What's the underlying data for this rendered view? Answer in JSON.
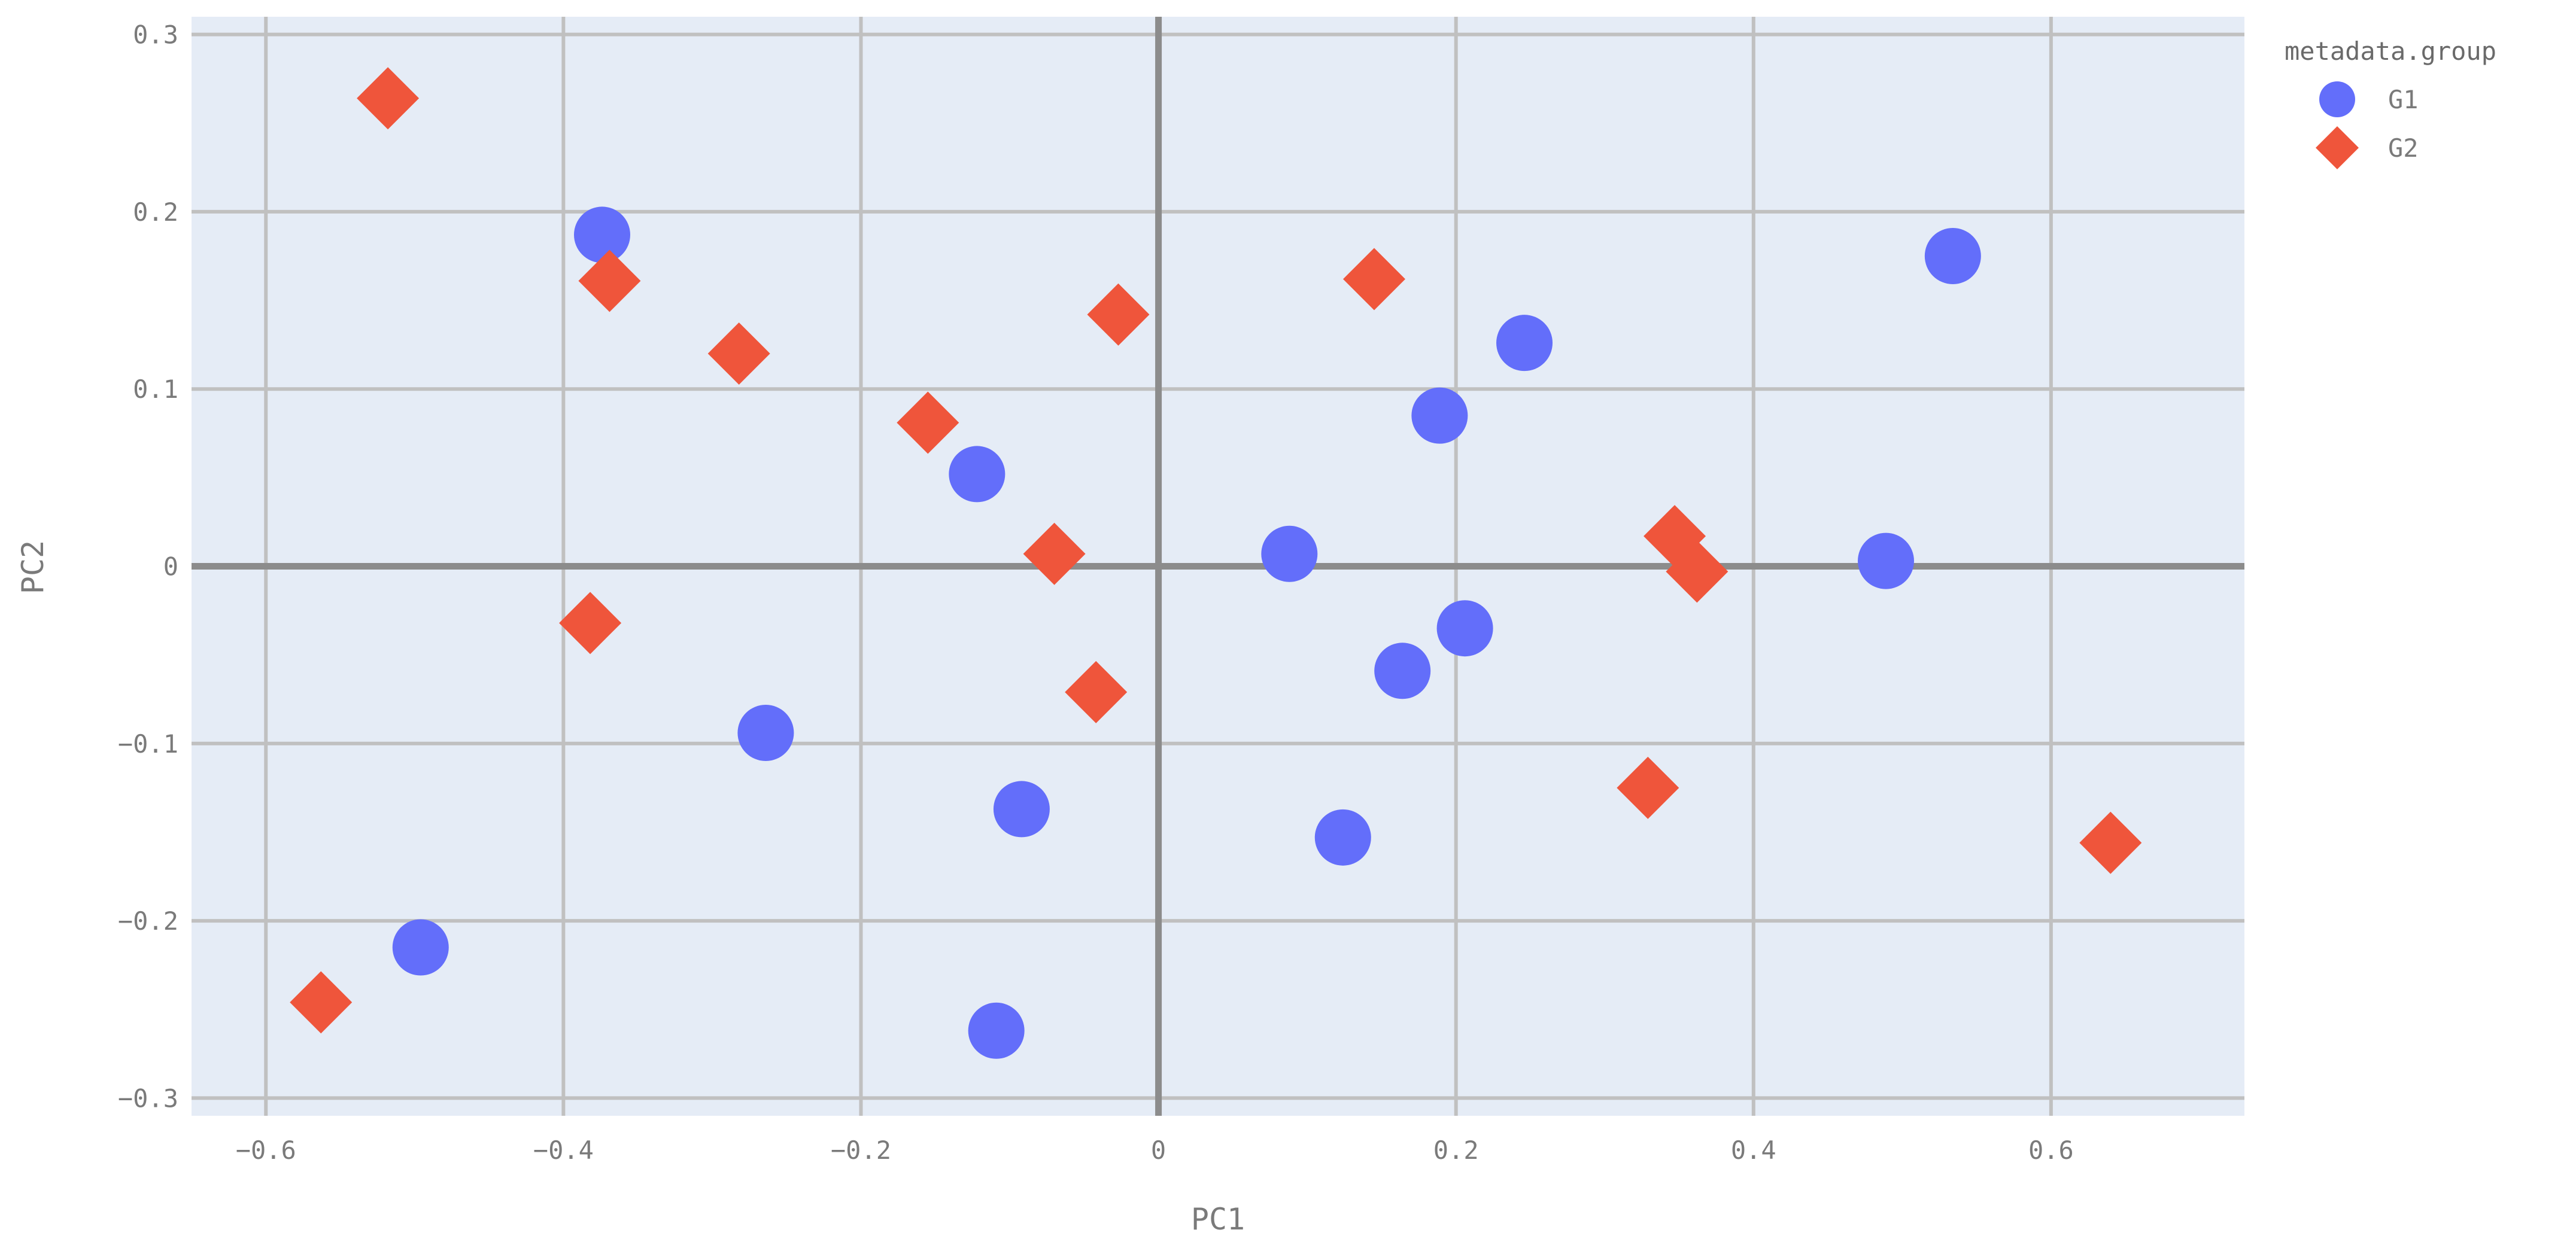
{
  "chart_data": {
    "type": "scatter",
    "xlabel": "PC1",
    "ylabel": "PC2",
    "xlim": [
      -0.65,
      0.73
    ],
    "ylim": [
      -0.31,
      0.31
    ],
    "x_ticks": [
      -0.6,
      -0.4,
      -0.2,
      0,
      0.2,
      0.4,
      0.6
    ],
    "x_tick_labels": [
      "−0.6",
      "−0.4",
      "−0.2",
      "0",
      "0.2",
      "0.4",
      "0.6"
    ],
    "y_ticks": [
      -0.3,
      -0.2,
      -0.1,
      0,
      0.1,
      0.2,
      0.3
    ],
    "y_tick_labels": [
      "−0.3",
      "−0.2",
      "−0.1",
      "0",
      "0.1",
      "0.2",
      "0.3"
    ],
    "grid": true,
    "legend": {
      "title": "metadata.group",
      "placement": "top-right, outside plot"
    },
    "series": [
      {
        "name": "G1",
        "marker": "circle",
        "color": "#636efa",
        "points": [
          {
            "x": -0.374,
            "y": 0.187
          },
          {
            "x": -0.122,
            "y": 0.052
          },
          {
            "x": -0.264,
            "y": -0.094
          },
          {
            "x": -0.092,
            "y": -0.137
          },
          {
            "x": -0.496,
            "y": -0.215
          },
          {
            "x": -0.109,
            "y": -0.262
          },
          {
            "x": 0.088,
            "y": 0.007
          },
          {
            "x": 0.189,
            "y": 0.085
          },
          {
            "x": 0.246,
            "y": 0.126
          },
          {
            "x": 0.206,
            "y": -0.035
          },
          {
            "x": 0.164,
            "y": -0.059
          },
          {
            "x": 0.124,
            "y": -0.153
          },
          {
            "x": 0.489,
            "y": 0.003
          },
          {
            "x": 0.534,
            "y": 0.175
          }
        ]
      },
      {
        "name": "G2",
        "marker": "diamond",
        "color": "#ef553b",
        "points": [
          {
            "x": -0.518,
            "y": 0.264
          },
          {
            "x": -0.369,
            "y": 0.161
          },
          {
            "x": -0.282,
            "y": 0.12
          },
          {
            "x": -0.155,
            "y": 0.081
          },
          {
            "x": -0.027,
            "y": 0.142
          },
          {
            "x": -0.07,
            "y": 0.007
          },
          {
            "x": -0.382,
            "y": -0.032
          },
          {
            "x": -0.042,
            "y": -0.071
          },
          {
            "x": -0.563,
            "y": -0.246
          },
          {
            "x": 0.145,
            "y": 0.162
          },
          {
            "x": 0.347,
            "y": 0.017
          },
          {
            "x": 0.362,
            "y": -0.003
          },
          {
            "x": 0.329,
            "y": -0.125
          },
          {
            "x": 0.64,
            "y": -0.156
          }
        ]
      }
    ]
  }
}
